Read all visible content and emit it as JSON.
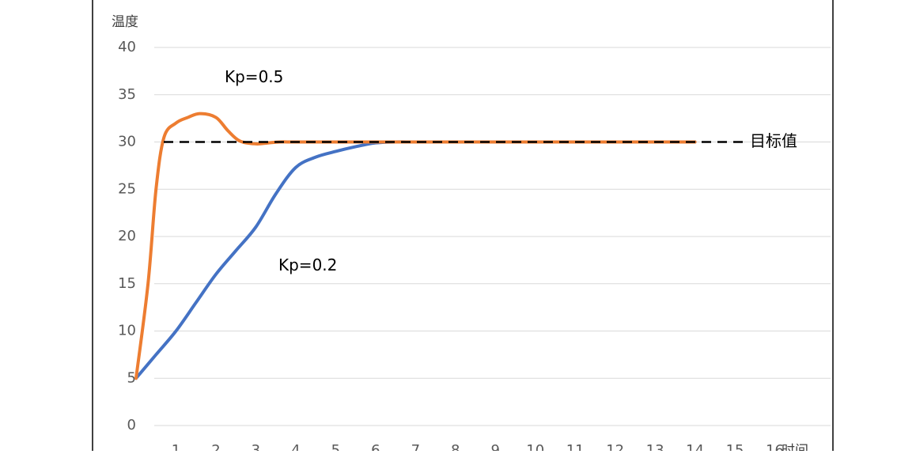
{
  "chart_data": {
    "type": "line",
    "title": "",
    "xlabel": "时间",
    "ylabel": "温度",
    "ylim": [
      0,
      40
    ],
    "xlim": [
      0,
      17
    ],
    "grid": "horizontal",
    "y_ticks": [
      "0",
      "5",
      "10",
      "15",
      "20",
      "25",
      "30",
      "35",
      "40"
    ],
    "x_ticks": [
      "1",
      "2",
      "3",
      "4",
      "5",
      "6",
      "7",
      "8",
      "9",
      "10",
      "11",
      "12",
      "13",
      "14",
      "15",
      "16"
    ],
    "target": {
      "label": "目标值",
      "value": 30,
      "color": "#000000"
    },
    "annotations": {
      "kp05": "Kp=0.5",
      "kp02": "Kp=0.2"
    },
    "series": [
      {
        "color": "#ED7D31",
        "x": [
          0,
          0.3,
          0.5,
          0.7,
          1,
          1.3,
          1.6,
          2,
          2.3,
          2.6,
          3,
          3.3,
          3.6,
          4,
          5,
          6,
          7,
          8,
          9,
          10,
          11,
          12,
          13,
          14
        ],
        "y": [
          5,
          15,
          25,
          30.5,
          32,
          32.6,
          33,
          32.6,
          31.2,
          30.1,
          29.8,
          29.9,
          30,
          30,
          30,
          30,
          30,
          30,
          30,
          30,
          30,
          30,
          30,
          30
        ]
      },
      {
        "color": "#4472C4",
        "x": [
          0,
          0.5,
          1,
          1.5,
          2,
          2.5,
          3,
          3.5,
          4,
          4.5,
          5,
          5.5,
          6,
          6.5,
          7,
          8,
          9,
          10,
          11,
          12,
          13,
          14
        ],
        "y": [
          5,
          7.5,
          10,
          13,
          16,
          18.5,
          21,
          24.5,
          27.3,
          28.4,
          29,
          29.5,
          29.9,
          30,
          30,
          30,
          30,
          30,
          30,
          30,
          30,
          30
        ]
      }
    ]
  }
}
